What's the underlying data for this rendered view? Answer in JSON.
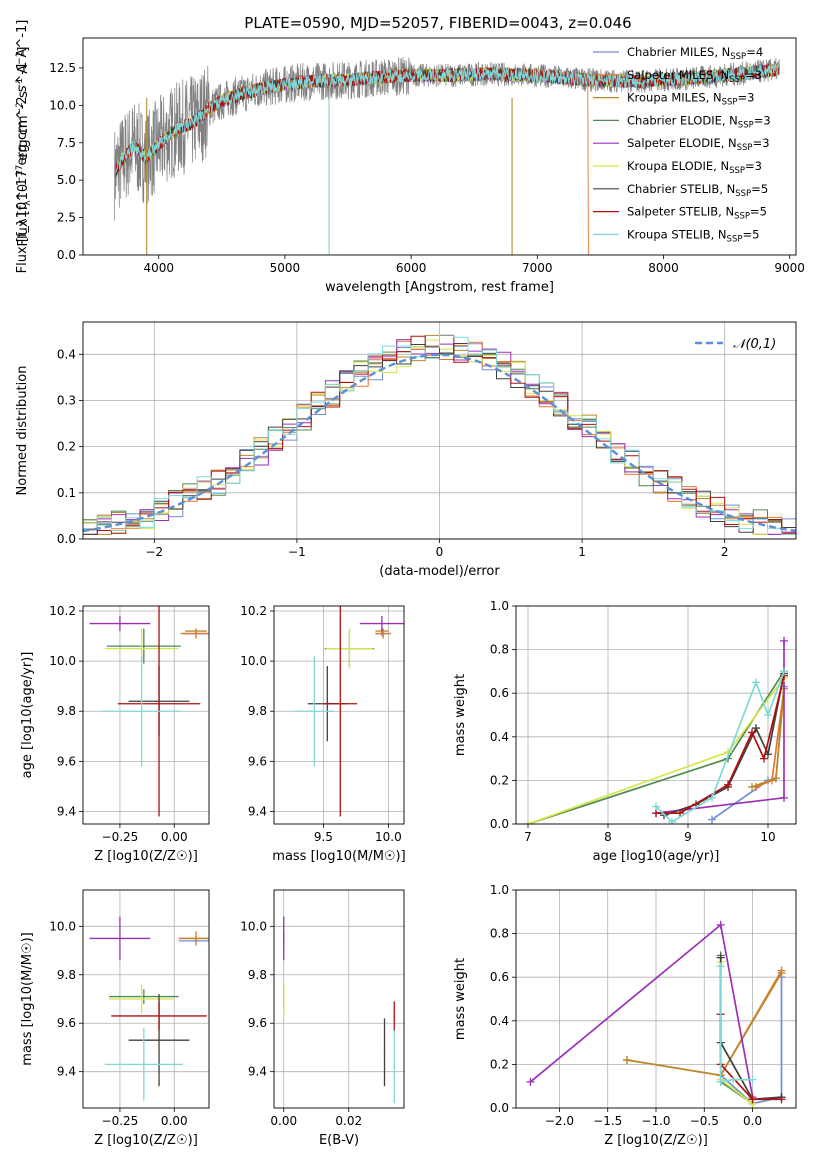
{
  "figure": {
    "title": "PLATE=0590, MJD=52057, FIBERID=0043, z=0.046"
  },
  "models": [
    {
      "name": "Chabrier MILES",
      "nssp": "4",
      "color": "#6f8fd8"
    },
    {
      "name": "Salpeter MILES",
      "nssp": "3",
      "color": "#e8732a"
    },
    {
      "name": "Kroupa MILES",
      "nssp": "3",
      "color": "#b88a2c"
    },
    {
      "name": "Chabrier ELODIE",
      "nssp": "3",
      "color": "#4f8a4f"
    },
    {
      "name": "Salpeter ELODIE",
      "nssp": "3",
      "color": "#9b30b8"
    },
    {
      "name": "Kroupa ELODIE",
      "nssp": "3",
      "color": "#d4e84a"
    },
    {
      "name": "Chabrier STELIB",
      "nssp": "5",
      "color": "#404040"
    },
    {
      "name": "Salpeter STELIB",
      "nssp": "5",
      "color": "#b01010"
    },
    {
      "name": "Kroupa STELIB",
      "nssp": "5",
      "color": "#7ed8d8"
    }
  ],
  "chart_data": [
    {
      "id": "spectrum",
      "type": "line",
      "xlabel": "wavelength [Angstrom, rest frame]",
      "ylabel": "Flux [f_λ10^-17 erg cm^-2 s^-1 A^-1]",
      "xlim": [
        3400,
        9050
      ],
      "ylim": [
        0,
        14.5
      ],
      "xticks": [
        4000,
        5000,
        6000,
        7000,
        8000,
        9000
      ],
      "yticks": [
        0.0,
        2.5,
        5.0,
        7.5,
        10.0,
        12.5
      ],
      "data_color": "#808080",
      "continuum": {
        "x": [
          3650,
          3700,
          3800,
          3900,
          4000,
          4100,
          4200,
          4300,
          4400,
          4500,
          4600,
          4800,
          5000,
          5200,
          5500,
          5800,
          6000,
          6300,
          6600,
          7000,
          7400,
          7800,
          8200,
          8600,
          8920
        ],
        "y": [
          5.5,
          6.2,
          7.3,
          6.5,
          7.4,
          8.2,
          8.6,
          9.0,
          9.8,
          10.3,
          10.6,
          11.1,
          11.4,
          11.6,
          11.7,
          11.9,
          12.0,
          12.0,
          12.1,
          12.0,
          11.7,
          11.6,
          11.8,
          12.1,
          12.4
        ]
      },
      "data_end": 8920,
      "model_ends": [
        8920,
        7400,
        8920,
        8920,
        8920,
        8920,
        8920,
        8920,
        8920
      ],
      "spikes": [
        {
          "x": 5350,
          "color": "#7ed8d8"
        },
        {
          "x": 6800,
          "color": "#b88a2c"
        },
        {
          "x": 3905,
          "color": "#b88a2c"
        }
      ],
      "legend_position": "upper right"
    },
    {
      "id": "residuals",
      "type": "histogram",
      "xlabel": "(data-model)/error",
      "ylabel": "Normed distribution",
      "xlim": [
        -2.5,
        2.5
      ],
      "ylim": [
        0,
        0.47
      ],
      "xticks": [
        -2,
        -1,
        0,
        1,
        2
      ],
      "yticks": [
        0.0,
        0.1,
        0.2,
        0.3,
        0.4
      ],
      "bin_width": 0.1,
      "bin_start": -2.5,
      "reference": {
        "name": "𝒩(0,1)",
        "mean": 0,
        "sigma": 1,
        "color": "#5b8fd8"
      },
      "legend_position": "upper right",
      "grid": true
    },
    {
      "id": "age_vs_Z",
      "type": "errorbar",
      "xlabel": "Z [log10(Z/Z☉)]",
      "ylabel": "age [log10(age/yr)]",
      "xlim": [
        -0.42,
        0.16
      ],
      "ylim": [
        9.35,
        10.22
      ],
      "xticks": [
        -0.25,
        0.0
      ],
      "yticks": [
        9.4,
        9.6,
        9.8,
        10.0,
        10.2
      ],
      "points": [
        {
          "model": 0,
          "x": 0.1,
          "y": 10.11,
          "xerr": 0.06,
          "yerr": 0.01
        },
        {
          "model": 1,
          "x": 0.1,
          "y": 10.11,
          "xerr": 0.07,
          "yerr": 0.02
        },
        {
          "model": 2,
          "x": 0.1,
          "y": 10.12,
          "xerr": 0.05,
          "yerr": 0.01
        },
        {
          "model": 3,
          "x": -0.14,
          "y": 10.06,
          "xerr": 0.17,
          "yerr": 0.07
        },
        {
          "model": 4,
          "x": -0.25,
          "y": 10.15,
          "xerr": 0.14,
          "yerr": 0.03
        },
        {
          "model": 5,
          "x": -0.15,
          "y": 10.05,
          "xerr": 0.17,
          "yerr": 0.08
        },
        {
          "model": 6,
          "x": -0.07,
          "y": 9.84,
          "xerr": 0.14,
          "yerr": 0.14
        },
        {
          "model": 7,
          "x": -0.07,
          "y": 9.83,
          "xerr": 0.19,
          "yerr": 0.45
        },
        {
          "model": 8,
          "x": -0.15,
          "y": 9.8,
          "xerr": 0.18,
          "yerr": 0.22
        }
      ],
      "grid": true
    },
    {
      "id": "age_vs_mass",
      "type": "errorbar",
      "xlabel": "mass [log10(M/M☉)]",
      "ylabel": "",
      "xlim": [
        9.12,
        10.12
      ],
      "ylim": [
        9.35,
        10.22
      ],
      "xticks": [
        9.5,
        10.0
      ],
      "yticks": [
        9.4,
        9.6,
        9.8,
        10.0,
        10.2
      ],
      "points": [
        {
          "model": 0,
          "x": 9.95,
          "y": 10.11,
          "xerr": 0.05,
          "yerr": 0.01
        },
        {
          "model": 1,
          "x": 9.96,
          "y": 10.11,
          "xerr": 0.06,
          "yerr": 0.02
        },
        {
          "model": 2,
          "x": 9.95,
          "y": 10.12,
          "xerr": 0.05,
          "yerr": 0.01
        },
        {
          "model": 3,
          "x": 9.7,
          "y": 10.05,
          "xerr": 0.19,
          "yerr": 0.07
        },
        {
          "model": 4,
          "x": 9.95,
          "y": 10.15,
          "xerr": 0.17,
          "yerr": 0.03
        },
        {
          "model": 5,
          "x": 9.7,
          "y": 10.05,
          "xerr": 0.18,
          "yerr": 0.08
        },
        {
          "model": 6,
          "x": 9.53,
          "y": 9.83,
          "xerr": 0.15,
          "yerr": 0.15
        },
        {
          "model": 7,
          "x": 9.63,
          "y": 9.83,
          "xerr": 0.13,
          "yerr": 0.45
        },
        {
          "model": 8,
          "x": 9.43,
          "y": 9.8,
          "xerr": 0.15,
          "yerr": 0.22
        }
      ],
      "grid": true
    },
    {
      "id": "weight_vs_age",
      "type": "line",
      "xlabel": "age [log10(age/yr)]",
      "ylabel": "mass weight",
      "xlim": [
        6.85,
        10.35
      ],
      "ylim": [
        0,
        1.0
      ],
      "xticks": [
        7,
        8,
        9,
        10
      ],
      "yticks": [
        0.0,
        0.2,
        0.4,
        0.6,
        0.8,
        1.0
      ],
      "series": [
        {
          "model": 0,
          "x": [
            9.3,
            10.0,
            10.1,
            10.2
          ],
          "y": [
            0.02,
            0.2,
            0.21,
            0.63
          ]
        },
        {
          "model": 1,
          "x": [
            9.85,
            10.05,
            10.2
          ],
          "y": [
            0.17,
            0.2,
            0.62
          ]
        },
        {
          "model": 2,
          "x": [
            9.8,
            10.1,
            10.2
          ],
          "y": [
            0.17,
            0.21,
            0.62
          ]
        },
        {
          "model": 3,
          "x": [
            7.0,
            9.5,
            10.2
          ],
          "y": [
            0.0,
            0.3,
            0.7
          ]
        },
        {
          "model": 4,
          "x": [
            8.6,
            10.2,
            10.2
          ],
          "y": [
            0.05,
            0.12,
            0.84
          ]
        },
        {
          "model": 5,
          "x": [
            7.0,
            9.5,
            10.2
          ],
          "y": [
            0.0,
            0.33,
            0.67
          ]
        },
        {
          "model": 6,
          "x": [
            8.7,
            9.1,
            9.5,
            9.85,
            10.0,
            10.2
          ],
          "y": [
            0.04,
            0.09,
            0.17,
            0.44,
            0.32,
            0.69
          ]
        },
        {
          "model": 7,
          "x": [
            8.6,
            8.9,
            9.5,
            9.8,
            9.95,
            10.2
          ],
          "y": [
            0.05,
            0.05,
            0.18,
            0.42,
            0.3,
            0.68
          ]
        },
        {
          "model": 8,
          "x": [
            8.6,
            8.8,
            9.3,
            9.85,
            10.0,
            10.2
          ],
          "y": [
            0.08,
            0.01,
            0.12,
            0.65,
            0.5,
            0.7
          ]
        }
      ],
      "grid": true
    },
    {
      "id": "mass_vs_Z",
      "type": "errorbar",
      "xlabel": "Z [log10(Z/Z☉)]",
      "ylabel": "mass [log10(M/M☉)]",
      "xlim": [
        -0.42,
        0.16
      ],
      "ylim": [
        9.25,
        10.15
      ],
      "xticks": [
        -0.25,
        0.0
      ],
      "yticks": [
        9.4,
        9.6,
        9.8,
        10.0
      ],
      "points": [
        {
          "model": 0,
          "x": 0.1,
          "y": 9.94,
          "xerr": 0.08,
          "yerr": 0.01
        },
        {
          "model": 1,
          "x": 0.1,
          "y": 9.95,
          "xerr": 0.08,
          "yerr": 0.03
        },
        {
          "model": 2,
          "x": 0.1,
          "y": 9.95,
          "xerr": 0.07,
          "yerr": 0.01
        },
        {
          "model": 3,
          "x": -0.14,
          "y": 9.71,
          "xerr": 0.16,
          "yerr": 0.03
        },
        {
          "model": 4,
          "x": -0.25,
          "y": 9.95,
          "xerr": 0.14,
          "yerr": 0.09
        },
        {
          "model": 5,
          "x": -0.15,
          "y": 9.7,
          "xerr": 0.15,
          "yerr": 0.06
        },
        {
          "model": 6,
          "x": -0.07,
          "y": 9.53,
          "xerr": 0.14,
          "yerr": 0.19
        },
        {
          "model": 7,
          "x": -0.07,
          "y": 9.63,
          "xerr": 0.22,
          "yerr": 0.06
        },
        {
          "model": 8,
          "x": -0.14,
          "y": 9.43,
          "xerr": 0.18,
          "yerr": 0.15
        }
      ],
      "grid": true
    },
    {
      "id": "mass_vs_ebv",
      "type": "errorbar",
      "xlabel": "E(B-V)",
      "ylabel": "",
      "xlim": [
        -0.003,
        0.037
      ],
      "ylim": [
        9.25,
        10.15
      ],
      "xticks": [
        0.0,
        0.02
      ],
      "yticks": [
        9.4,
        9.6,
        9.8,
        10.0
      ],
      "points": [
        {
          "model": 0,
          "x": 0.0,
          "y": 9.94,
          "xerr": 0.0002,
          "yerr": 0.01
        },
        {
          "model": 1,
          "x": 0.0,
          "y": 9.95,
          "xerr": 0.0002,
          "yerr": 0.03
        },
        {
          "model": 2,
          "x": 0.0,
          "y": 9.95,
          "xerr": 0.0002,
          "yerr": 0.02
        },
        {
          "model": 3,
          "x": 0.0,
          "y": 9.71,
          "xerr": 0.0002,
          "yerr": 0.05
        },
        {
          "model": 4,
          "x": 0.0,
          "y": 9.95,
          "xerr": 0.0002,
          "yerr": 0.09
        },
        {
          "model": 5,
          "x": 0.0,
          "y": 9.7,
          "xerr": 0.0002,
          "yerr": 0.07
        },
        {
          "model": 6,
          "x": 0.031,
          "y": 9.48,
          "xerr": 0.0002,
          "yerr": 0.14
        },
        {
          "model": 7,
          "x": 0.034,
          "y": 9.63,
          "xerr": 0.0002,
          "yerr": 0.06
        },
        {
          "model": 8,
          "x": 0.034,
          "y": 9.42,
          "xerr": 0.0002,
          "yerr": 0.15
        }
      ],
      "grid": true
    },
    {
      "id": "weight_vs_Z",
      "type": "line",
      "xlabel": "Z [log10(Z/Z☉)]",
      "ylabel": "mass weight",
      "xlim": [
        -2.45,
        0.45
      ],
      "ylim": [
        0,
        1.0
      ],
      "xticks": [
        -2.0,
        -1.5,
        -1.0,
        -0.5,
        0.0
      ],
      "yticks": [
        0.0,
        0.2,
        0.4,
        0.6,
        0.8,
        1.0
      ],
      "series": [
        {
          "model": 0,
          "x": [
            -0.33,
            0.0,
            0.3,
            0.3
          ],
          "y": [
            0.15,
            0.02,
            0.05,
            0.6
          ]
        },
        {
          "model": 1,
          "x": [
            -1.3,
            -0.33,
            0.3
          ],
          "y": [
            0.22,
            0.15,
            0.63
          ]
        },
        {
          "model": 2,
          "x": [
            -1.3,
            -0.33,
            0.3
          ],
          "y": [
            0.22,
            0.15,
            0.62
          ]
        },
        {
          "model": 3,
          "x": [
            -0.33,
            -0.33,
            0.0
          ],
          "y": [
            0.7,
            0.12,
            0.02
          ]
        },
        {
          "model": 4,
          "x": [
            -2.3,
            -0.33,
            0.0
          ],
          "y": [
            0.12,
            0.84,
            0.05
          ]
        },
        {
          "model": 5,
          "x": [
            -0.33,
            -0.33,
            0.0
          ],
          "y": [
            0.67,
            0.13,
            0.02
          ]
        },
        {
          "model": 6,
          "x": [
            -0.33,
            -0.33,
            0.0,
            0.3
          ],
          "y": [
            0.69,
            0.3,
            0.04,
            0.05
          ]
        },
        {
          "model": 7,
          "x": [
            -0.33,
            -0.33,
            0.0,
            0.3
          ],
          "y": [
            0.43,
            0.2,
            0.04,
            0.04
          ]
        },
        {
          "model": 8,
          "x": [
            -0.33,
            -0.33,
            -0.2,
            0.0
          ],
          "y": [
            0.65,
            0.12,
            0.13,
            0.13
          ]
        }
      ],
      "grid": true
    }
  ]
}
